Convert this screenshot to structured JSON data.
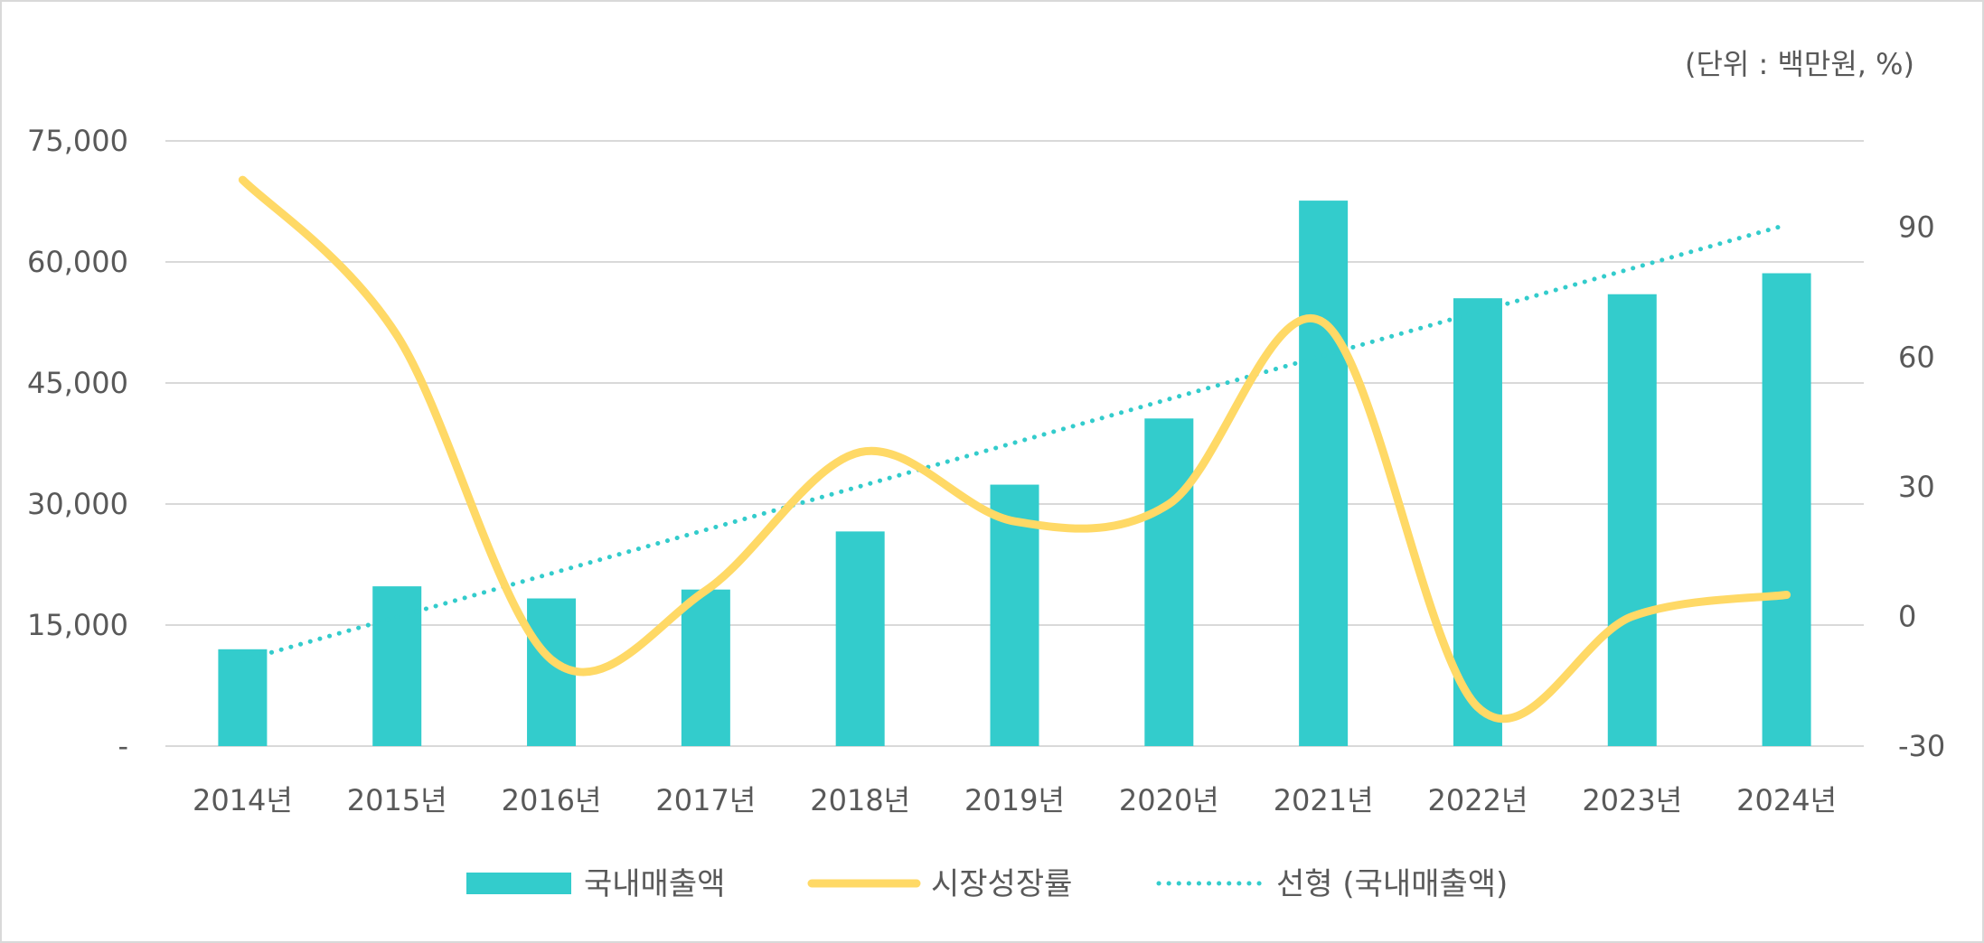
{
  "chart_data": {
    "type": "bar",
    "unit_note": "(단위 : 백만원, %)",
    "categories": [
      "2014년",
      "2015년",
      "2016년",
      "2017년",
      "2018년",
      "2019년",
      "2020년",
      "2021년",
      "2022년",
      "2023년",
      "2024년"
    ],
    "series": [
      {
        "name": "국내매출액",
        "type": "bar",
        "axis": "left",
        "values": [
          12000,
          19800,
          18300,
          19400,
          26600,
          32400,
          40600,
          67600,
          55500,
          56000,
          58600
        ]
      },
      {
        "name": "시장성장률",
        "type": "line",
        "smooth": true,
        "axis": "right",
        "values": [
          101,
          65,
          -10,
          6,
          38,
          22,
          26,
          68,
          -21,
          0,
          5
        ]
      },
      {
        "name": "선형 (국내매출액)",
        "type": "trendline",
        "style": "dotted",
        "axis": "left",
        "values": [
          10600,
          16000,
          21400,
          26800,
          32200,
          37600,
          43000,
          48400,
          53800,
          59200,
          64600
        ]
      }
    ],
    "y_left": {
      "min": 0,
      "max": 75000,
      "ticks": [
        0,
        15000,
        30000,
        45000,
        60000,
        75000
      ],
      "tick_labels": [
        "-",
        "15,000",
        "30,000",
        "45,000",
        "60,000",
        "75,000"
      ]
    },
    "y_right": {
      "min": -30,
      "max": 110,
      "ticks": [
        -30,
        0,
        30,
        60,
        90
      ],
      "tick_labels": [
        "-30",
        "0",
        "30",
        "60",
        "90"
      ]
    },
    "grid": true,
    "legend": "bottom",
    "colors": {
      "bar": "#33CCCC",
      "line": "#FFD966",
      "trend": "#33CCCC",
      "grid": "#d9d9d9",
      "text": "#595959"
    }
  }
}
